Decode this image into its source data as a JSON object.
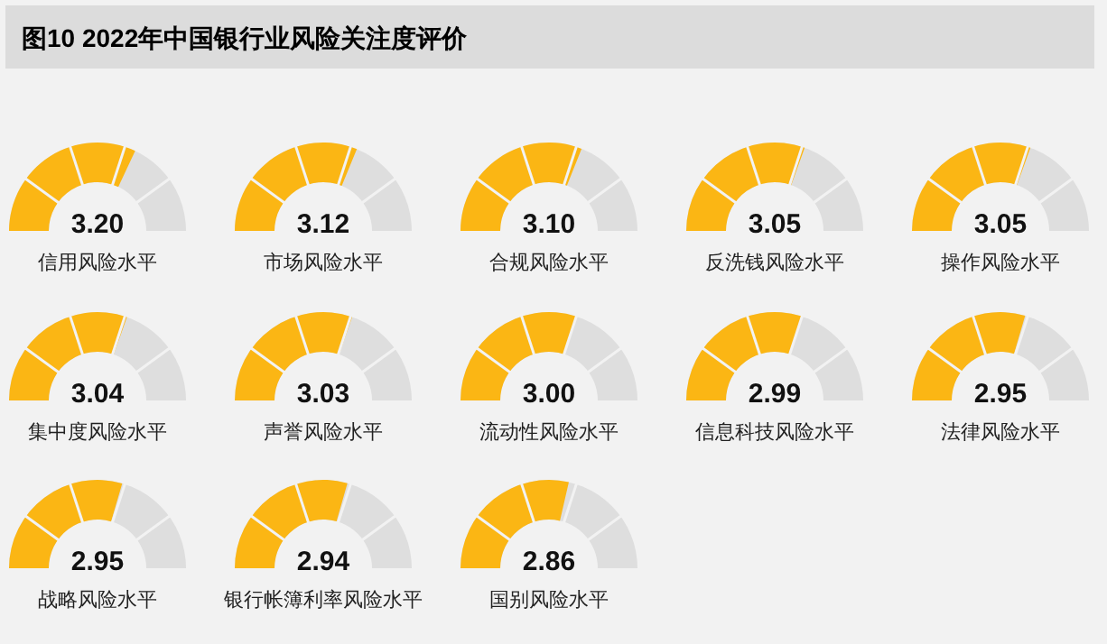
{
  "chart_data": {
    "type": "other",
    "title": "图10  2022年中国银行业风险关注度评价",
    "categories": [
      "信用风险水平",
      "市场风险水平",
      "合规风险水平",
      "反洗钱风险水平",
      "操作风险水平",
      "集中度风险水平",
      "声誉风险水平",
      "流动性风险水平",
      "信息科技风险水平",
      "法律风险水平",
      "战略风险水平",
      "银行帐簿利率风险水平",
      "国别风险水平"
    ],
    "values": [
      3.2,
      3.12,
      3.1,
      3.05,
      3.05,
      3.04,
      3.03,
      3.0,
      2.99,
      2.95,
      2.95,
      2.94,
      2.86
    ],
    "value_labels": [
      "3.20",
      "3.12",
      "3.10",
      "3.05",
      "3.05",
      "3.04",
      "3.03",
      "3.00",
      "2.99",
      "2.95",
      "2.95",
      "2.94",
      "2.86"
    ],
    "color": "#fbb614"
  }
}
